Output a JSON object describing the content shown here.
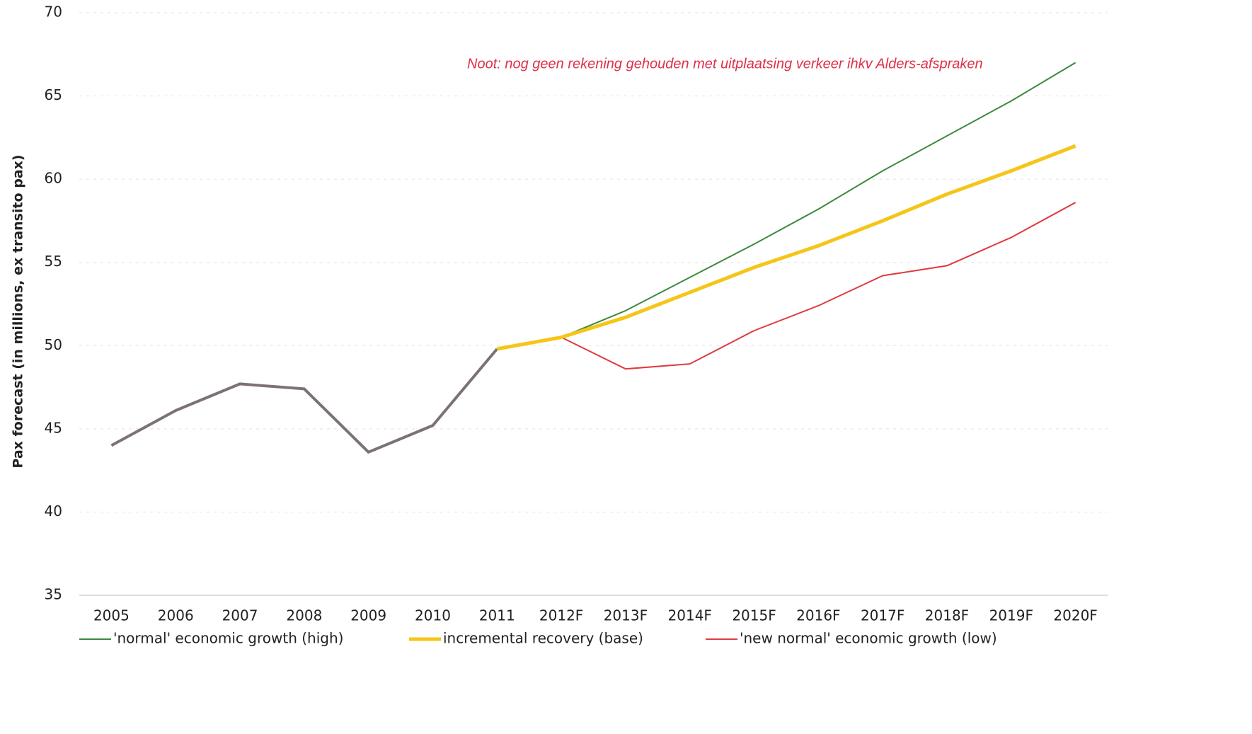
{
  "chart_data": {
    "type": "line",
    "annotation": "Noot: nog geen rekening gehouden met uitplaatsing verkeer ihkv Alders-afspraken",
    "y_label": "Pax forecast (in millions, ex transito pax)",
    "categories": [
      "2005",
      "2006",
      "2007",
      "2008",
      "2009",
      "2010",
      "2011",
      "2012F",
      "2013F",
      "2014F",
      "2015F",
      "2016F",
      "2017F",
      "2018F",
      "2019F",
      "2020F"
    ],
    "series": [
      {
        "color": "#7d7272",
        "values": [
          44.0,
          46.1,
          47.7,
          47.4,
          43.6,
          45.2,
          49.8,
          null,
          null,
          null,
          null,
          null,
          null,
          null,
          null,
          null
        ]
      },
      {
        "name": "'normal' economic growth (high)",
        "color": "#3c8a3c",
        "values": [
          null,
          null,
          null,
          null,
          null,
          null,
          null,
          50.5,
          52.1,
          54.1,
          56.1,
          58.2,
          60.5,
          62.6,
          64.7,
          67.0
        ]
      },
      {
        "name": "'new normal' economic growth (low)",
        "color": "#e03a3e",
        "values": [
          null,
          null,
          null,
          null,
          null,
          null,
          null,
          50.5,
          48.6,
          48.9,
          50.9,
          52.4,
          54.2,
          54.8,
          56.5,
          58.6
        ]
      },
      {
        "name": "incremental recovery (base)",
        "color": "#f5c518",
        "values": [
          null,
          null,
          null,
          null,
          null,
          null,
          49.8,
          50.5,
          51.7,
          53.2,
          54.7,
          56.0,
          57.5,
          59.1,
          60.5,
          62.0
        ]
      }
    ],
    "ylim": [
      35,
      70
    ],
    "yticks": [
      35,
      40,
      45,
      50,
      55,
      60,
      65,
      70
    ],
    "grid": true
  }
}
